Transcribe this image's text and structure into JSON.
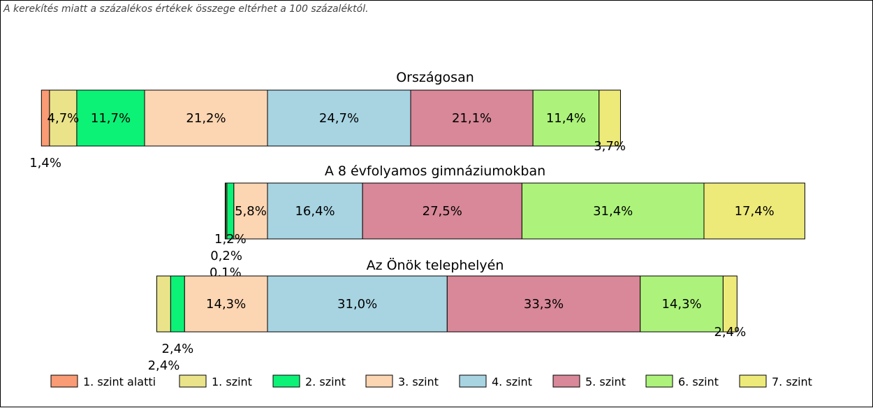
{
  "note": "A kerekítés miatt a  százalékos értékek összege eltérhet a 100 százaléktól.",
  "colors": {
    "level_below_1": "#F99B74",
    "level_1": "#EAE38A",
    "level_2": "#0BF277",
    "level_3": "#FCD5B2",
    "level_4": "#A8D4E2",
    "level_5": "#D88898",
    "level_6": "#ADF37B",
    "level_7": "#EEEA79"
  },
  "chart_data": {
    "type": "bar",
    "orientation": "horizontal-stacked",
    "categories": [
      "Országosan",
      "A 8 évfolyamos gimnáziumokban",
      "Az Önök telephelyén"
    ],
    "series": [
      {
        "name": "1. szint alatti",
        "values": [
          1.4,
          0.1,
          0.0
        ],
        "labels": [
          "1,4%",
          "0,1%",
          ""
        ]
      },
      {
        "name": "1. szint",
        "values": [
          4.7,
          0.2,
          2.4
        ],
        "labels": [
          "4,7%",
          "0,2%",
          "2,4%"
        ]
      },
      {
        "name": "2. szint",
        "values": [
          11.7,
          1.2,
          2.4
        ],
        "labels": [
          "11,7%",
          "1,2%",
          "2,4%"
        ]
      },
      {
        "name": "3. szint",
        "values": [
          21.2,
          5.8,
          14.3
        ],
        "labels": [
          "21,2%",
          "5,8%",
          "14,3%"
        ]
      },
      {
        "name": "4. szint",
        "values": [
          24.7,
          16.4,
          31.0
        ],
        "labels": [
          "24,7%",
          "16,4%",
          "31,0%"
        ]
      },
      {
        "name": "5. szint",
        "values": [
          21.1,
          27.5,
          33.3
        ],
        "labels": [
          "21,1%",
          "27,5%",
          "33,3%"
        ]
      },
      {
        "name": "6. szint",
        "values": [
          11.4,
          31.4,
          14.3
        ],
        "labels": [
          "11,4%",
          "31,4%",
          "14,3%"
        ]
      },
      {
        "name": "7. szint",
        "values": [
          3.7,
          17.4,
          2.4
        ],
        "labels": [
          "3,7%",
          "17,4%",
          "2,4%"
        ]
      }
    ],
    "legend": "bottom"
  }
}
